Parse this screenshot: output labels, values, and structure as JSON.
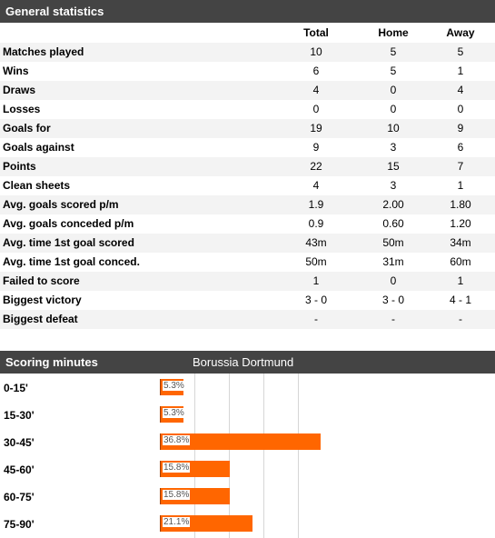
{
  "general": {
    "title": "General statistics",
    "columns": [
      "Total",
      "Home",
      "Away"
    ],
    "rows": [
      {
        "label": "Matches played",
        "total": "10",
        "home": "5",
        "away": "5"
      },
      {
        "label": "Wins",
        "total": "6",
        "home": "5",
        "away": "1"
      },
      {
        "label": "Draws",
        "total": "4",
        "home": "0",
        "away": "4"
      },
      {
        "label": "Losses",
        "total": "0",
        "home": "0",
        "away": "0"
      },
      {
        "label": "Goals for",
        "total": "19",
        "home": "10",
        "away": "9"
      },
      {
        "label": "Goals against",
        "total": "9",
        "home": "3",
        "away": "6"
      },
      {
        "label": "Points",
        "total": "22",
        "home": "15",
        "away": "7"
      },
      {
        "label": "Clean sheets",
        "total": "4",
        "home": "3",
        "away": "1"
      },
      {
        "label": "Avg. goals scored p/m",
        "total": "1.9",
        "home": "2.00",
        "away": "1.80"
      },
      {
        "label": "Avg. goals conceded p/m",
        "total": "0.9",
        "home": "0.60",
        "away": "1.20"
      },
      {
        "label": "Avg. time 1st goal scored",
        "total": "43m",
        "home": "50m",
        "away": "34m"
      },
      {
        "label": "Avg. time 1st goal conced.",
        "total": "50m",
        "home": "31m",
        "away": "60m"
      },
      {
        "label": "Failed to score",
        "total": "1",
        "home": "0",
        "away": "1"
      },
      {
        "label": "Biggest victory",
        "total": "3 - 0",
        "home": "3 - 0",
        "away": "4 - 1"
      },
      {
        "label": "Biggest defeat",
        "total": "-",
        "home": "-",
        "away": "-"
      }
    ]
  },
  "scoring": {
    "title": "Scoring minutes",
    "team": "Borussia Dortmund",
    "colors": {
      "bar": "#ff6600",
      "header": "#444444"
    }
  },
  "chart_data": {
    "type": "bar",
    "categories": [
      "0-15'",
      "15-30'",
      "30-45'",
      "45-60'",
      "60-75'",
      "75-90'"
    ],
    "values": [
      5.3,
      5.3,
      36.8,
      15.8,
      15.8,
      21.1
    ],
    "data_labels": [
      "5.3%",
      "5.3%",
      "36.8%",
      "15.8%",
      "15.8%",
      "21.1%"
    ],
    "xlim": [
      0,
      100
    ],
    "grid": true
  }
}
